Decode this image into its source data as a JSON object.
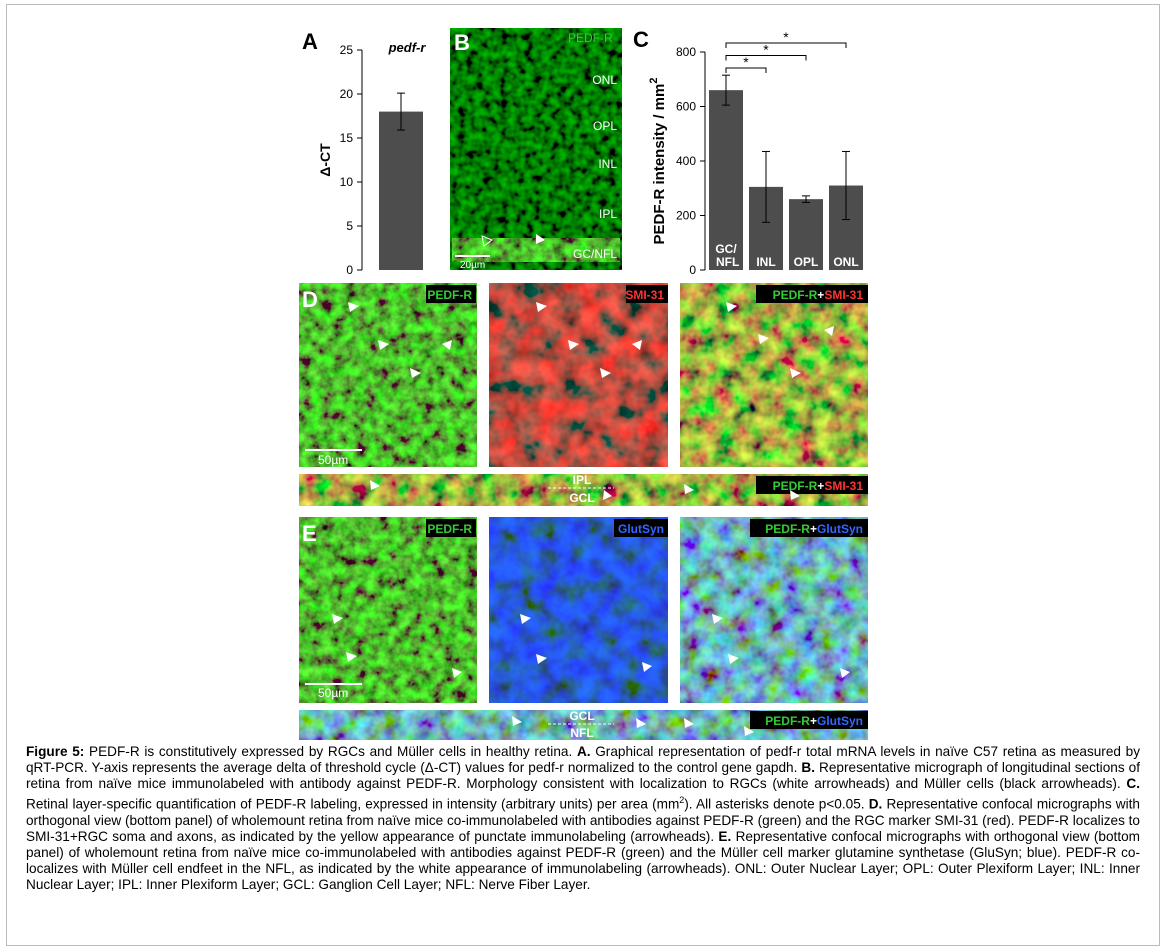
{
  "chart_data": [
    {
      "type": "bar",
      "title": "pedf-r",
      "ylabel": "Δ-CT",
      "categories": [
        null
      ],
      "values": [
        18
      ],
      "errors": [
        2.1
      ],
      "color": "#4d4d4d",
      "ylim": [
        0,
        25
      ],
      "yticks": [
        0,
        5,
        10,
        15,
        20,
        25
      ]
    },
    {
      "type": "bar",
      "ylabel": "PEDF-R intensity / mm",
      "ylabel_sup": "2",
      "categories": [
        "GC/ NFL",
        "INL",
        "OPL",
        "ONL"
      ],
      "values": [
        660,
        305,
        260,
        310
      ],
      "errors": [
        55,
        130,
        12,
        125
      ],
      "color": "#4d4d4d",
      "ylim": [
        0,
        800
      ],
      "yticks": [
        0,
        200,
        400,
        600,
        800
      ],
      "annotations": [
        "*",
        "*",
        "*"
      ]
    }
  ],
  "panels": {
    "A": "A",
    "B": "B",
    "C": "C",
    "D": "D",
    "E": "E"
  },
  "panel_b": {
    "marker": "PEDF-R",
    "layers": [
      "ONL",
      "OPL",
      "INL",
      "IPL",
      "GC/NFL"
    ],
    "scale": "20µm"
  },
  "panel_d": {
    "left": "PEDF-R",
    "middle": "SMI-31",
    "merge": [
      "PEDF-R",
      "+",
      "SMI-31"
    ],
    "scale": "50µm",
    "strip_top": "IPL",
    "strip_bottom": "GCL"
  },
  "panel_e": {
    "left": "PEDF-R",
    "middle": "GlutSyn",
    "merge": [
      "PEDF-R",
      "+",
      "GlutSyn"
    ],
    "scale": "50µm",
    "strip_top": "GCL",
    "strip_bottom": "NFL"
  },
  "caption": [
    "Figure 5:",
    " PEDF-R is constitutively expressed by RGCs and Müller cells in healthy retina. ",
    "A.",
    " Graphical representation of pedf-r total mRNA levels in naïve C57 retina as measured by qRT-PCR. Y-axis represents the average delta of threshold cycle (Δ-CT) values for pedf-r normalized to the control gene gapdh. ",
    "B.",
    " Representative micrograph of longitudinal sections of retina from naïve mice immunolabeled with antibody against PEDF-R. Morphology consistent with localization to RGCs (white arrowheads) and Müller cells (black arrowheads). ",
    "C.",
    " Retinal layer-specific quantification of PEDF-R labeling, expressed in intensity (arbitrary units) per area (mm",
    "2",
    "). All asterisks denote p<0.05. ",
    "D.",
    " Representative confocal micrographs with orthogonal view (bottom panel) of wholemount retina from naïve mice co-immunolabeled with antibodies against PEDF-R (green) and the RGC marker SMI-31 (red). PEDF-R localizes to SMI-31+RGC soma and axons, as indicated by the yellow appearance of punctate immunolabeling (arrowheads). ",
    "E.",
    " Representative confocal micrographs with orthogonal view (bottom panel) of wholemount retina from naïve mice co-immunolabeled with antibodies against PEDF-R (green) and the Müller cell marker glutamine synthetase (GluSyn; blue). PEDF-R co-localizes with Müller cell endfeet in the NFL, as indicated by the white appearance of immunolabeling (arrowheads). ONL: Outer Nuclear Layer; OPL: Outer Plexiform Layer; INL: Inner Nuclear Layer; IPL: Inner Plexiform Layer; GCL: Ganglion Cell Layer; NFL: Nerve Fiber Layer."
  ]
}
